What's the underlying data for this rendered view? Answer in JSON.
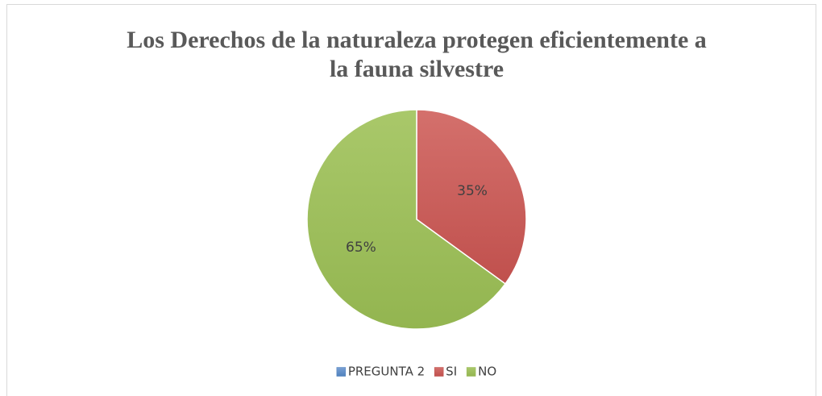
{
  "chart_data": {
    "type": "pie",
    "title": "Los Derechos de la naturaleza protegen eficientemente a la fauna silvestre",
    "categories": [
      "PREGUNTA 2",
      "SI",
      "NO"
    ],
    "values": [
      0,
      35,
      65
    ],
    "value_labels": [
      null,
      "35%",
      "65%"
    ],
    "colors": [
      "#4f81bd",
      "#c0504d",
      "#9bbb59"
    ],
    "legend": "bottom"
  }
}
